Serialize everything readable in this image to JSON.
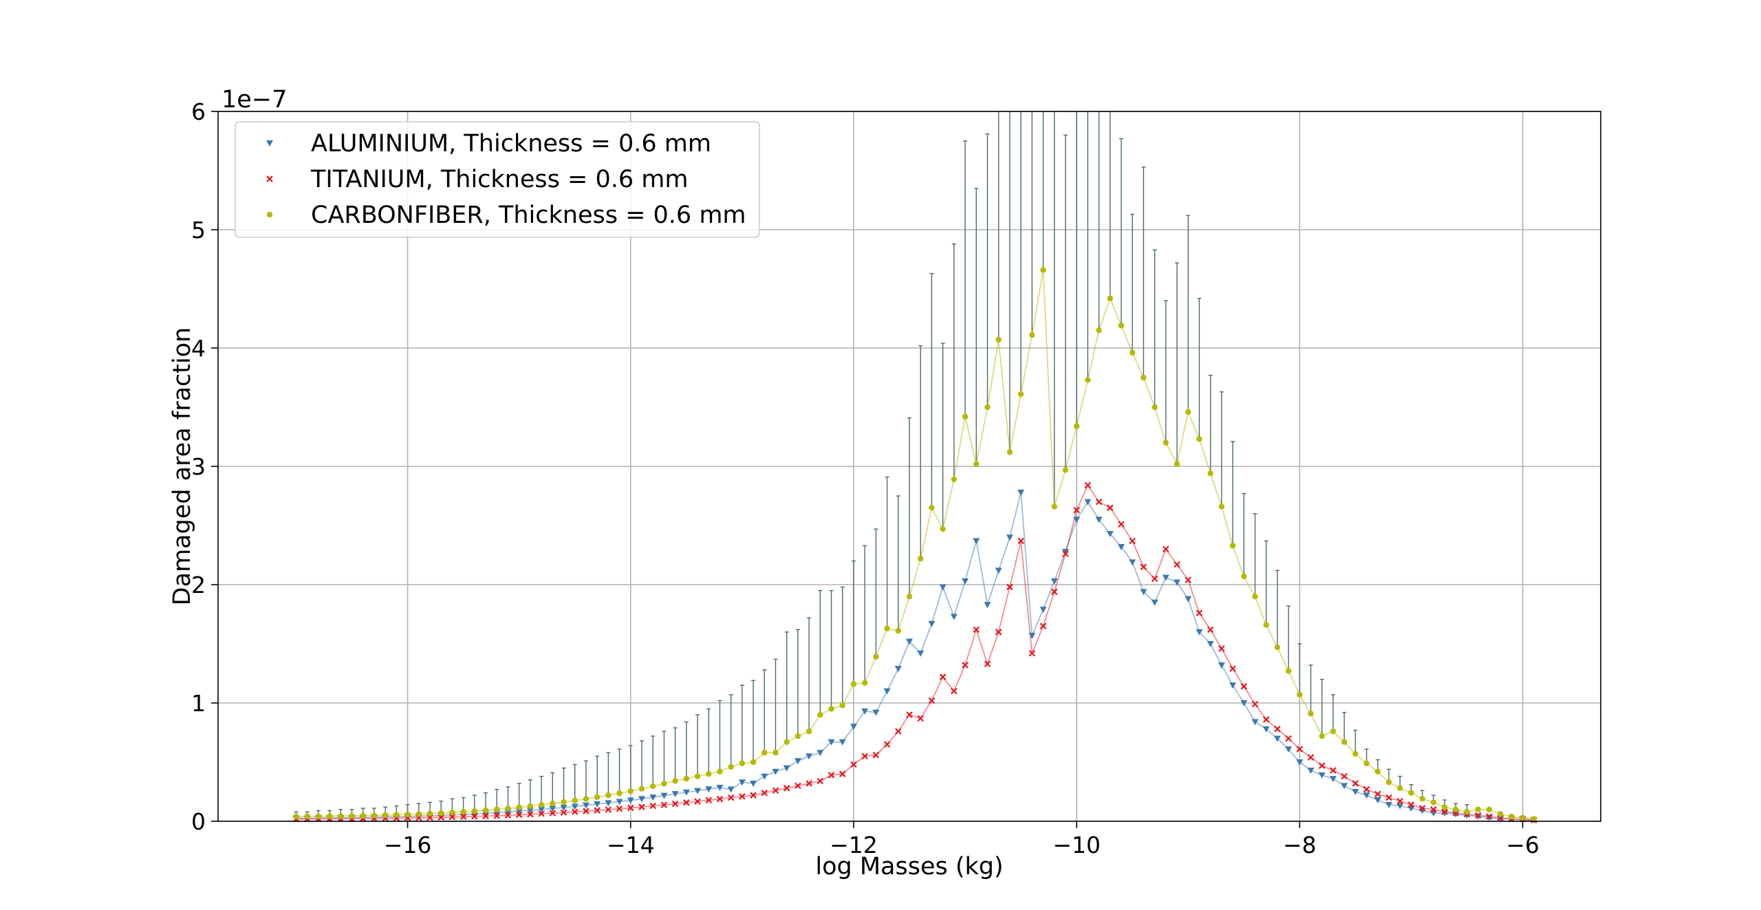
{
  "chart_data": {
    "type": "scatter",
    "title": "",
    "xlabel": "log Masses (kg)",
    "ylabel": "Damaged area fraction",
    "y_offset_text": "1e−7",
    "xlim": [
      -17.7,
      -5.3
    ],
    "ylim": [
      0,
      6
    ],
    "y_scale_factor": 1e-07,
    "x_ticks": [
      -16,
      -14,
      -12,
      -10,
      -8,
      -6
    ],
    "x_tick_labels": [
      "−16",
      "−14",
      "−12",
      "−10",
      "−8",
      "−6"
    ],
    "y_ticks": [
      0,
      1,
      2,
      3,
      4,
      5,
      6
    ],
    "y_tick_labels": [
      "0",
      "1",
      "2",
      "3",
      "4",
      "5",
      "6"
    ],
    "grid": true,
    "legend_position": "top-left",
    "error_bar_color": "#4a6a6a",
    "x": [
      -17.0,
      -16.9,
      -16.8,
      -16.7,
      -16.6,
      -16.5,
      -16.4,
      -16.3,
      -16.2,
      -16.1,
      -16.0,
      -15.9,
      -15.8,
      -15.7,
      -15.6,
      -15.5,
      -15.4,
      -15.3,
      -15.2,
      -15.1,
      -15.0,
      -14.9,
      -14.8,
      -14.7,
      -14.6,
      -14.5,
      -14.4,
      -14.3,
      -14.2,
      -14.1,
      -14.0,
      -13.9,
      -13.8,
      -13.7,
      -13.6,
      -13.5,
      -13.4,
      -13.3,
      -13.2,
      -13.1,
      -13.0,
      -12.9,
      -12.8,
      -12.7,
      -12.6,
      -12.5,
      -12.4,
      -12.3,
      -12.2,
      -12.1,
      -12.0,
      -11.9,
      -11.8,
      -11.7,
      -11.6,
      -11.5,
      -11.4,
      -11.3,
      -11.2,
      -11.1,
      -11.0,
      -10.9,
      -10.8,
      -10.7,
      -10.6,
      -10.5,
      -10.4,
      -10.3,
      -10.2,
      -10.1,
      -10.0,
      -9.9,
      -9.8,
      -9.7,
      -9.6,
      -9.5,
      -9.4,
      -9.3,
      -9.2,
      -9.1,
      -9.0,
      -8.9,
      -8.8,
      -8.7,
      -8.6,
      -8.5,
      -8.4,
      -8.3,
      -8.2,
      -8.1,
      -8.0,
      -7.9,
      -7.8,
      -7.7,
      -7.6,
      -7.5,
      -7.4,
      -7.3,
      -7.2,
      -7.1,
      -7.0,
      -6.9,
      -6.8,
      -6.7,
      -6.6,
      -6.5,
      -6.4,
      -6.3,
      -6.2,
      -6.1,
      -6.0,
      -5.9
    ],
    "series": [
      {
        "name": "ALUMINIUM, Thickness = 0.6 mm",
        "color": "#3b78b0",
        "marker": "triangle-down",
        "values": [
          0.025,
          0.025,
          0.027,
          0.028,
          0.029,
          0.031,
          0.032,
          0.034,
          0.036,
          0.038,
          0.04,
          0.043,
          0.046,
          0.05,
          0.054,
          0.058,
          0.063,
          0.068,
          0.074,
          0.08,
          0.086,
          0.093,
          0.1,
          0.108,
          0.116,
          0.125,
          0.135,
          0.145,
          0.155,
          0.166,
          0.177,
          0.19,
          0.203,
          0.217,
          0.232,
          0.245,
          0.258,
          0.272,
          0.285,
          0.27,
          0.33,
          0.32,
          0.38,
          0.42,
          0.45,
          0.51,
          0.55,
          0.58,
          0.67,
          0.67,
          0.8,
          0.93,
          0.92,
          1.1,
          1.29,
          1.52,
          1.42,
          1.67,
          1.98,
          1.73,
          2.03,
          2.37,
          1.83,
          2.12,
          2.4,
          2.78,
          1.57,
          1.79,
          2.03,
          2.28,
          2.55,
          2.7,
          2.55,
          2.43,
          2.32,
          2.19,
          1.94,
          1.85,
          2.06,
          2.02,
          1.88,
          1.6,
          1.5,
          1.32,
          1.15,
          1.0,
          0.84,
          0.78,
          0.7,
          0.61,
          0.5,
          0.43,
          0.39,
          0.36,
          0.3,
          0.25,
          0.22,
          0.18,
          0.14,
          0.13,
          0.11,
          0.09,
          0.07,
          0.07,
          0.06,
          0.05,
          0.04,
          0.03,
          0.02,
          0.02,
          0.01,
          0.01
        ]
      },
      {
        "name": "TITANIUM, Thickness = 0.6 mm",
        "color": "#e8151b",
        "marker": "x",
        "values": [
          0.018,
          0.019,
          0.02,
          0.02,
          0.021,
          0.022,
          0.023,
          0.024,
          0.025,
          0.026,
          0.028,
          0.029,
          0.031,
          0.033,
          0.036,
          0.038,
          0.041,
          0.044,
          0.047,
          0.051,
          0.055,
          0.059,
          0.064,
          0.069,
          0.074,
          0.08,
          0.086,
          0.092,
          0.099,
          0.106,
          0.113,
          0.121,
          0.13,
          0.139,
          0.148,
          0.158,
          0.168,
          0.178,
          0.188,
          0.2,
          0.21,
          0.22,
          0.24,
          0.26,
          0.28,
          0.3,
          0.32,
          0.34,
          0.39,
          0.4,
          0.48,
          0.55,
          0.56,
          0.65,
          0.76,
          0.9,
          0.87,
          1.02,
          1.22,
          1.1,
          1.32,
          1.62,
          1.33,
          1.6,
          1.98,
          2.37,
          1.42,
          1.65,
          1.94,
          2.26,
          2.63,
          2.84,
          2.7,
          2.65,
          2.51,
          2.37,
          2.15,
          2.05,
          2.3,
          2.17,
          2.04,
          1.76,
          1.62,
          1.46,
          1.29,
          1.14,
          0.99,
          0.86,
          0.78,
          0.7,
          0.61,
          0.54,
          0.47,
          0.43,
          0.38,
          0.32,
          0.27,
          0.23,
          0.2,
          0.17,
          0.14,
          0.11,
          0.1,
          0.08,
          0.07,
          0.06,
          0.05,
          0.04,
          0.03,
          0.02,
          0.02,
          0.01
        ]
      },
      {
        "name": "CARBONFIBER, Thickness = 0.6 mm",
        "color": "#b5ba00",
        "marker": "circle",
        "values": [
          0.04,
          0.041,
          0.042,
          0.043,
          0.044,
          0.045,
          0.047,
          0.049,
          0.052,
          0.055,
          0.058,
          0.061,
          0.065,
          0.069,
          0.074,
          0.08,
          0.086,
          0.093,
          0.101,
          0.109,
          0.118,
          0.128,
          0.139,
          0.15,
          0.162,
          0.175,
          0.189,
          0.204,
          0.22,
          0.237,
          0.255,
          0.275,
          0.296,
          0.318,
          0.341,
          0.36,
          0.38,
          0.4,
          0.42,
          0.46,
          0.49,
          0.5,
          0.58,
          0.58,
          0.67,
          0.72,
          0.76,
          0.9,
          0.95,
          0.98,
          1.16,
          1.17,
          1.39,
          1.63,
          1.61,
          1.9,
          2.22,
          2.65,
          2.47,
          2.89,
          3.42,
          3.02,
          3.5,
          4.07,
          3.12,
          3.61,
          4.11,
          4.66,
          2.66,
          2.97,
          3.34,
          3.73,
          4.15,
          4.42,
          4.19,
          3.96,
          3.75,
          3.5,
          3.2,
          3.02,
          3.46,
          3.23,
          2.94,
          2.66,
          2.33,
          2.07,
          1.9,
          1.66,
          1.47,
          1.27,
          1.07,
          0.91,
          0.72,
          0.76,
          0.67,
          0.57,
          0.49,
          0.42,
          0.33,
          0.28,
          0.24,
          0.19,
          0.16,
          0.12,
          0.1,
          0.08,
          0.1,
          0.1,
          0.06,
          0.04,
          0.03,
          0.02
        ]
      }
    ],
    "error_upper": [
      0.08,
      0.08,
      0.09,
      0.09,
      0.1,
      0.1,
      0.11,
      0.11,
      0.12,
      0.13,
      0.14,
      0.15,
      0.16,
      0.17,
      0.19,
      0.2,
      0.22,
      0.24,
      0.27,
      0.29,
      0.32,
      0.35,
      0.38,
      0.41,
      0.45,
      0.48,
      0.51,
      0.55,
      0.58,
      0.61,
      0.64,
      0.68,
      0.72,
      0.76,
      0.79,
      0.84,
      0.9,
      0.95,
      1.02,
      1.07,
      1.15,
      1.19,
      1.28,
      1.37,
      1.6,
      1.62,
      1.72,
      1.95,
      1.95,
      1.98,
      2.2,
      2.33,
      2.47,
      2.91,
      2.75,
      3.41,
      4.02,
      4.63,
      4.04,
      4.88,
      5.75,
      5.35,
      5.81,
      6.05,
      6.45,
      6.05,
      6.2,
      6.1,
      6.05,
      5.8,
      6.0,
      6.03,
      6.35,
      6.05,
      5.77,
      5.13,
      5.53,
      4.83,
      4.4,
      4.72,
      5.12,
      4.42,
      3.77,
      3.63,
      3.21,
      2.77,
      2.6,
      2.37,
      2.12,
      1.82,
      1.5,
      1.32,
      1.2,
      1.07,
      0.92,
      0.77,
      0.61,
      0.52,
      0.44,
      0.38,
      0.31,
      0.26,
      0.22,
      0.18,
      0.15,
      0.14,
      0.11,
      0.1,
      0.08,
      0.05,
      0.04,
      0.03
    ]
  }
}
